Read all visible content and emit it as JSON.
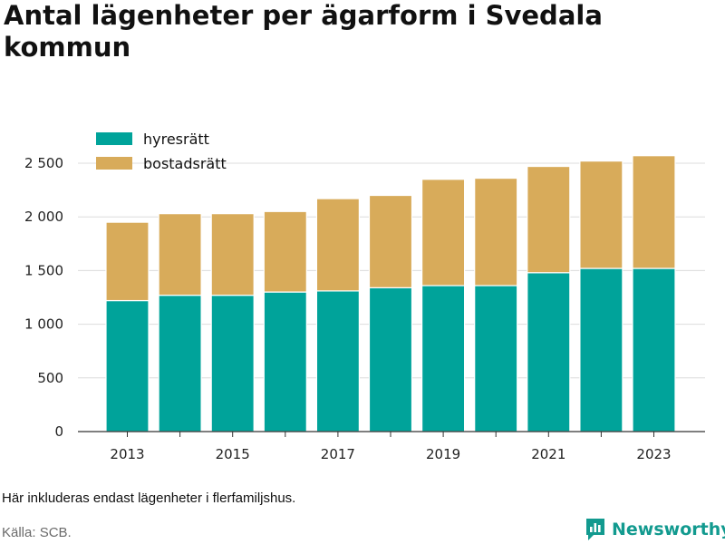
{
  "title": "Antal lägenheter per ägarform i Svedala kommun",
  "note": "Här inkluderas endast lägenheter i flerfamiljshus.",
  "source": "Källa: SCB.",
  "brand": {
    "name": "Newsworthy",
    "icon": "newsworthy-logo-icon",
    "color": "#129a8f"
  },
  "chart_data": {
    "type": "bar",
    "stacked": true,
    "categories": [
      "2013",
      "2014",
      "2015",
      "2016",
      "2017",
      "2018",
      "2019",
      "2020",
      "2021",
      "2022",
      "2023"
    ],
    "x_tick_labels": [
      "2013",
      "",
      "2015",
      "",
      "2017",
      "",
      "2019",
      "",
      "2021",
      "",
      "2023"
    ],
    "series": [
      {
        "name": "hyresrätt",
        "color": "#00a39a",
        "values": [
          1220,
          1270,
          1270,
          1300,
          1310,
          1340,
          1360,
          1360,
          1480,
          1520,
          1520
        ]
      },
      {
        "name": "bostadsrätt",
        "color": "#d8ab5a",
        "values": [
          730,
          760,
          760,
          750,
          860,
          860,
          990,
          1000,
          990,
          1000,
          1050
        ]
      }
    ],
    "ylim": [
      0,
      2600
    ],
    "y_ticks": [
      0,
      500,
      1000,
      1500,
      2000,
      2500
    ],
    "y_tick_labels": [
      "0",
      "500",
      "1 000",
      "1 500",
      "2 000",
      "2 500"
    ],
    "grid": true,
    "legend": "top-left",
    "xlabel": "",
    "ylabel": ""
  }
}
